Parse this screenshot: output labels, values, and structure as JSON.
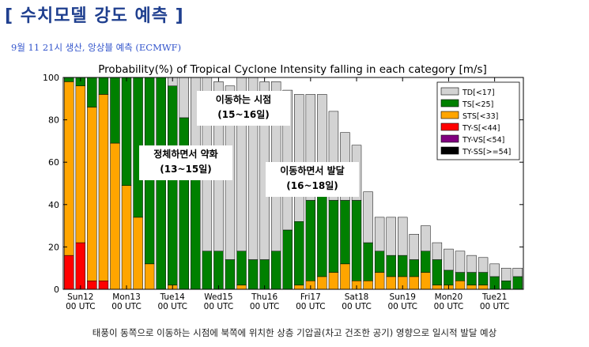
{
  "header": {
    "title": "[ 수치모델 강도 예측 ]",
    "subtitle": "9월 11 21시 생산, 앙상블 예측 (ECMWF)"
  },
  "footer": {
    "caption": "태풍이 동쪽으로 이동하는 시점에 북쪽에 위치한 상층 기압골(차고 건조한 공기) 영향으로 일시적 발달 예상"
  },
  "chart_data": {
    "type": "bar",
    "stacked": true,
    "title": "Probability(%) of Tropical Cyclone Intensity falling in each category [m/s]",
    "ylim": [
      0,
      100
    ],
    "yticks": [
      0,
      20,
      40,
      60,
      80,
      100
    ],
    "grid": false,
    "legend_position": "top-right",
    "xtick_labels": [
      {
        "index": 1,
        "line1": "Sun12",
        "line2": "00 UTC"
      },
      {
        "index": 5,
        "line1": "Mon13",
        "line2": "00 UTC"
      },
      {
        "index": 9,
        "line1": "Tue14",
        "line2": "00 UTC"
      },
      {
        "index": 13,
        "line1": "Wed15",
        "line2": "00 UTC"
      },
      {
        "index": 17,
        "line1": "Thu16",
        "line2": "00 UTC"
      },
      {
        "index": 21,
        "line1": "Fri17",
        "line2": "00 UTC"
      },
      {
        "index": 25,
        "line1": "Sat18",
        "line2": "00 UTC"
      },
      {
        "index": 29,
        "line1": "Sun19",
        "line2": "00 UTC"
      },
      {
        "index": 33,
        "line1": "Mon20",
        "line2": "00 UTC"
      },
      {
        "index": 37,
        "line1": "Tue21",
        "line2": "00 UTC"
      }
    ],
    "series": [
      {
        "name": "TY-SS[>=54]",
        "color": "#000000",
        "values": [
          0,
          0,
          0,
          0,
          0,
          0,
          0,
          0,
          0,
          0,
          0,
          0,
          0,
          0,
          0,
          0,
          0,
          0,
          0,
          0,
          0,
          0,
          0,
          0,
          0,
          0,
          0,
          0,
          0,
          0,
          0,
          0,
          0,
          0,
          0,
          0,
          0,
          0,
          0,
          0
        ]
      },
      {
        "name": "TY-VS[<54]",
        "color": "#800080",
        "values": [
          0,
          0,
          0,
          0,
          0,
          0,
          0,
          0,
          0,
          0,
          0,
          0,
          0,
          0,
          0,
          0,
          0,
          0,
          0,
          0,
          0,
          0,
          0,
          0,
          0,
          0,
          0,
          0,
          0,
          0,
          0,
          0,
          0,
          0,
          0,
          0,
          0,
          0,
          0,
          0
        ]
      },
      {
        "name": "TY-S[<44]",
        "color": "#ff0000",
        "values": [
          16,
          22,
          4,
          4,
          0,
          0,
          0,
          0,
          0,
          0,
          0,
          0,
          0,
          0,
          0,
          0,
          0,
          0,
          0,
          0,
          0,
          0,
          0,
          0,
          0,
          0,
          0,
          0,
          0,
          0,
          0,
          0,
          0,
          0,
          0,
          0,
          0,
          0,
          0,
          0
        ]
      },
      {
        "name": "STS[<33]",
        "color": "#ffa500",
        "values": [
          82,
          74,
          82,
          88,
          69,
          49,
          34,
          12,
          0,
          2,
          0,
          0,
          0,
          0,
          0,
          2,
          0,
          0,
          0,
          0,
          2,
          4,
          6,
          8,
          12,
          4,
          4,
          8,
          6,
          6,
          6,
          8,
          2,
          2,
          4,
          2,
          2,
          0,
          0,
          0
        ]
      },
      {
        "name": "TS[<25]",
        "color": "#008000",
        "values": [
          2,
          4,
          14,
          8,
          31,
          51,
          66,
          88,
          100,
          94,
          81,
          58,
          18,
          18,
          14,
          16,
          14,
          14,
          18,
          28,
          30,
          38,
          38,
          34,
          30,
          38,
          18,
          10,
          10,
          10,
          8,
          10,
          12,
          7,
          4,
          6,
          6,
          6,
          4,
          6
        ]
      },
      {
        "name": "TD[<17]",
        "color": "#d3d3d3",
        "values": [
          0,
          0,
          0,
          0,
          0,
          0,
          0,
          0,
          0,
          4,
          19,
          42,
          82,
          80,
          82,
          82,
          86,
          84,
          80,
          66,
          60,
          50,
          48,
          42,
          32,
          26,
          24,
          16,
          18,
          18,
          12,
          12,
          8,
          10,
          10,
          8,
          7,
          6,
          6,
          4
        ]
      }
    ]
  },
  "annotations": [
    {
      "line1": "이동하는 시점",
      "line2": "(15~16일)"
    },
    {
      "line1": "정체하면서 약화",
      "line2": "(13~15일)"
    },
    {
      "line1": "이동하면서 발달",
      "line2": "(16~18일)"
    }
  ]
}
